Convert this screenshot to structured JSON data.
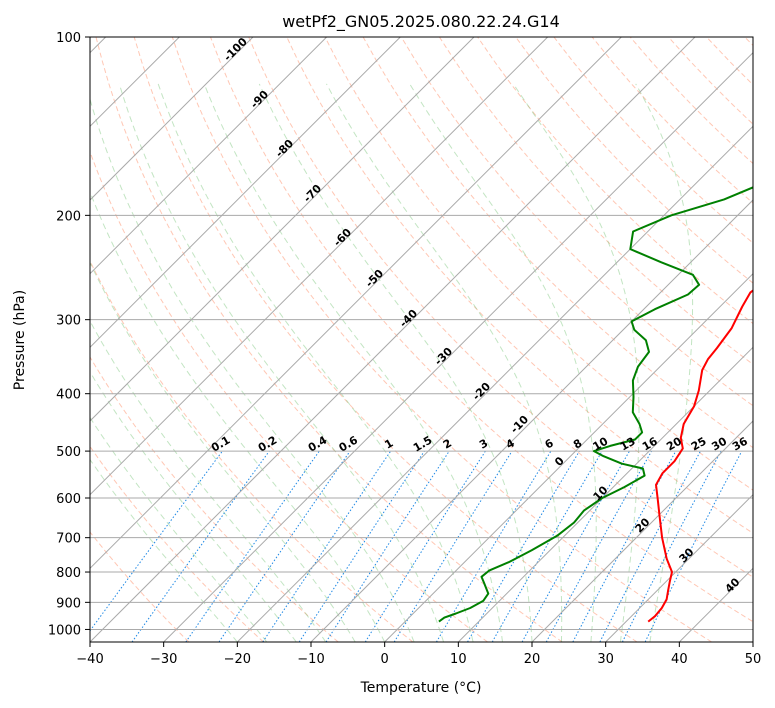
{
  "chart_data": {
    "type": "line",
    "title": "wetPf2_GN05.2025.080.22.24.G14",
    "xlabel": "Temperature (°C)",
    "ylabel": "Pressure (hPa)",
    "xlim": [
      -40,
      50
    ],
    "ylim": [
      1050,
      100
    ],
    "y_scale": "log",
    "grid": true,
    "x_ticks": [
      "−40",
      "−30",
      "−20",
      "−10",
      "0",
      "10",
      "20",
      "30",
      "40",
      "50"
    ],
    "y_ticks": [
      "100",
      "200",
      "300",
      "400",
      "500",
      "600",
      "700",
      "800",
      "900",
      "1000"
    ],
    "series": [
      {
        "role": "temperature",
        "color": "#ff0000",
        "points": [
          [
            33,
            970
          ],
          [
            33.2,
            950
          ],
          [
            33,
            920
          ],
          [
            32.5,
            890
          ],
          [
            31.5,
            860
          ],
          [
            30.5,
            830
          ],
          [
            29.5,
            800
          ],
          [
            27,
            760
          ],
          [
            23.5,
            700
          ],
          [
            20,
            640
          ],
          [
            17.5,
            600
          ],
          [
            15.5,
            570
          ],
          [
            14.8,
            545
          ],
          [
            14.8,
            520
          ],
          [
            14.2,
            495
          ],
          [
            12.5,
            475
          ],
          [
            11,
            450
          ],
          [
            10,
            420
          ],
          [
            8.5,
            395
          ],
          [
            6.2,
            365
          ],
          [
            5.5,
            350
          ],
          [
            5.2,
            335
          ],
          [
            4.5,
            310
          ],
          [
            3,
            285
          ],
          [
            2.2,
            270
          ],
          [
            2.5,
            262
          ],
          [
            4,
            254
          ],
          [
            6,
            245
          ],
          [
            7.5,
            230
          ],
          [
            8,
            210
          ],
          [
            7.8,
            195
          ],
          [
            6.5,
            178
          ],
          [
            4.5,
            158
          ],
          [
            3,
            143
          ],
          [
            2.8,
            128
          ],
          [
            3,
            117
          ],
          [
            4,
            107
          ],
          [
            5.5,
            100
          ]
        ]
      },
      {
        "role": "dewpoint",
        "color": "#008000",
        "points": [
          [
            4.6,
            970
          ],
          [
            4.8,
            955
          ],
          [
            5.8,
            940
          ],
          [
            7,
            920
          ],
          [
            7.8,
            895
          ],
          [
            7.5,
            870
          ],
          [
            5.5,
            835
          ],
          [
            4.3,
            815
          ],
          [
            4.5,
            795
          ],
          [
            6,
            770
          ],
          [
            7.5,
            735
          ],
          [
            9,
            695
          ],
          [
            9.5,
            660
          ],
          [
            9.2,
            630
          ],
          [
            10,
            600
          ],
          [
            11.5,
            575
          ],
          [
            12.7,
            550
          ],
          [
            11.5,
            535
          ],
          [
            8,
            525
          ],
          [
            4.5,
            510
          ],
          [
            2.5,
            500
          ],
          [
            4,
            490
          ],
          [
            6.5,
            478
          ],
          [
            6.5,
            465
          ],
          [
            5,
            450
          ],
          [
            2.5,
            430
          ],
          [
            0.5,
            405
          ],
          [
            -1.8,
            380
          ],
          [
            -3,
            360
          ],
          [
            -3.5,
            340
          ],
          [
            -5.5,
            325
          ],
          [
            -8.5,
            312
          ],
          [
            -10,
            302
          ],
          [
            -8.5,
            288
          ],
          [
            -6,
            272
          ],
          [
            -5.8,
            262
          ],
          [
            -8,
            252
          ],
          [
            -14,
            240
          ],
          [
            -20,
            228
          ],
          [
            -22,
            213
          ],
          [
            -19,
            200
          ],
          [
            -14,
            188
          ],
          [
            -10.5,
            175
          ],
          [
            -9,
            165
          ],
          [
            -6,
            150
          ],
          [
            -3,
            130
          ],
          [
            0,
            115
          ],
          [
            1.5,
            107
          ],
          [
            2.5,
            100
          ]
        ]
      }
    ],
    "background_lines": {
      "isotherms_color": "#aaaaaa",
      "dry_adiabats_color": "#ff9977",
      "moist_adiabats_color": "#88cc88",
      "mixing_ratio_color": "#1e88e5",
      "pressure_grid_color": "#aaaaaa"
    },
    "annotations": {
      "isotherm_labels_500hpa": [
        "-100",
        "-90",
        "-80",
        "-70",
        "-60",
        "-50",
        "-40",
        "-30",
        "-20",
        "-10",
        "0",
        "10",
        "20",
        "30",
        "40"
      ],
      "isotherm_label_colors": {
        "below_zero": "#2f7fbd",
        "zero": "#888888",
        "above_zero": "#d62728"
      },
      "mixing_ratio_labels": [
        "0.1",
        "0.2",
        "0.4",
        "0.6",
        "1",
        "1.5",
        "2",
        "3",
        "4",
        "6",
        "8",
        "10",
        "13",
        "16",
        "20",
        "25",
        "30",
        "36"
      ]
    }
  }
}
